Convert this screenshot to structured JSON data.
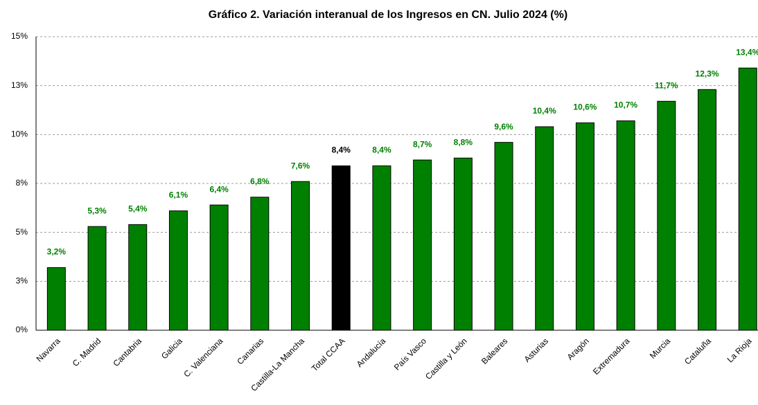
{
  "chart_data": {
    "type": "bar",
    "title": "Gráfico 2. Variación interanual de los Ingresos en CN. Julio 2024 (%)",
    "categories": [
      "Navarra",
      "C. Madrid",
      "Cantabria",
      "Galicia",
      "C. Valenciana",
      "Canarias",
      "Castilla-La Mancha",
      "Total CCAA",
      "Andalucía",
      "País Vasco",
      "Castilla y León",
      "Baleares",
      "Asturias",
      "Aragón",
      "Extremadura",
      "Murcia",
      "Cataluña",
      "La Rioja"
    ],
    "values": [
      3.2,
      5.3,
      5.4,
      6.1,
      6.4,
      6.8,
      7.6,
      8.4,
      8.4,
      8.7,
      8.8,
      9.6,
      10.4,
      10.6,
      10.7,
      11.7,
      12.3,
      13.4
    ],
    "value_labels": [
      "3,2%",
      "5,3%",
      "5,4%",
      "6,1%",
      "6,4%",
      "6,8%",
      "7,6%",
      "8,4%",
      "8,4%",
      "8,7%",
      "8,8%",
      "9,6%",
      "10,4%",
      "10,6%",
      "10,7%",
      "11,7%",
      "12,3%",
      "13,4%"
    ],
    "colors": [
      "#008000",
      "#008000",
      "#008000",
      "#008000",
      "#008000",
      "#008000",
      "#008000",
      "#000000",
      "#008000",
      "#008000",
      "#008000",
      "#008000",
      "#008000",
      "#008000",
      "#008000",
      "#008000",
      "#008000",
      "#008000"
    ],
    "ylim": [
      0,
      15
    ],
    "yticks": [
      {
        "value": 0,
        "label": "0%"
      },
      {
        "value": 2.5,
        "label": "3%"
      },
      {
        "value": 5,
        "label": "5%"
      },
      {
        "value": 7.5,
        "label": "8%"
      },
      {
        "value": 10,
        "label": "10%"
      },
      {
        "value": 12.5,
        "label": "13%"
      },
      {
        "value": 15,
        "label": "15%"
      }
    ],
    "grid": true
  }
}
